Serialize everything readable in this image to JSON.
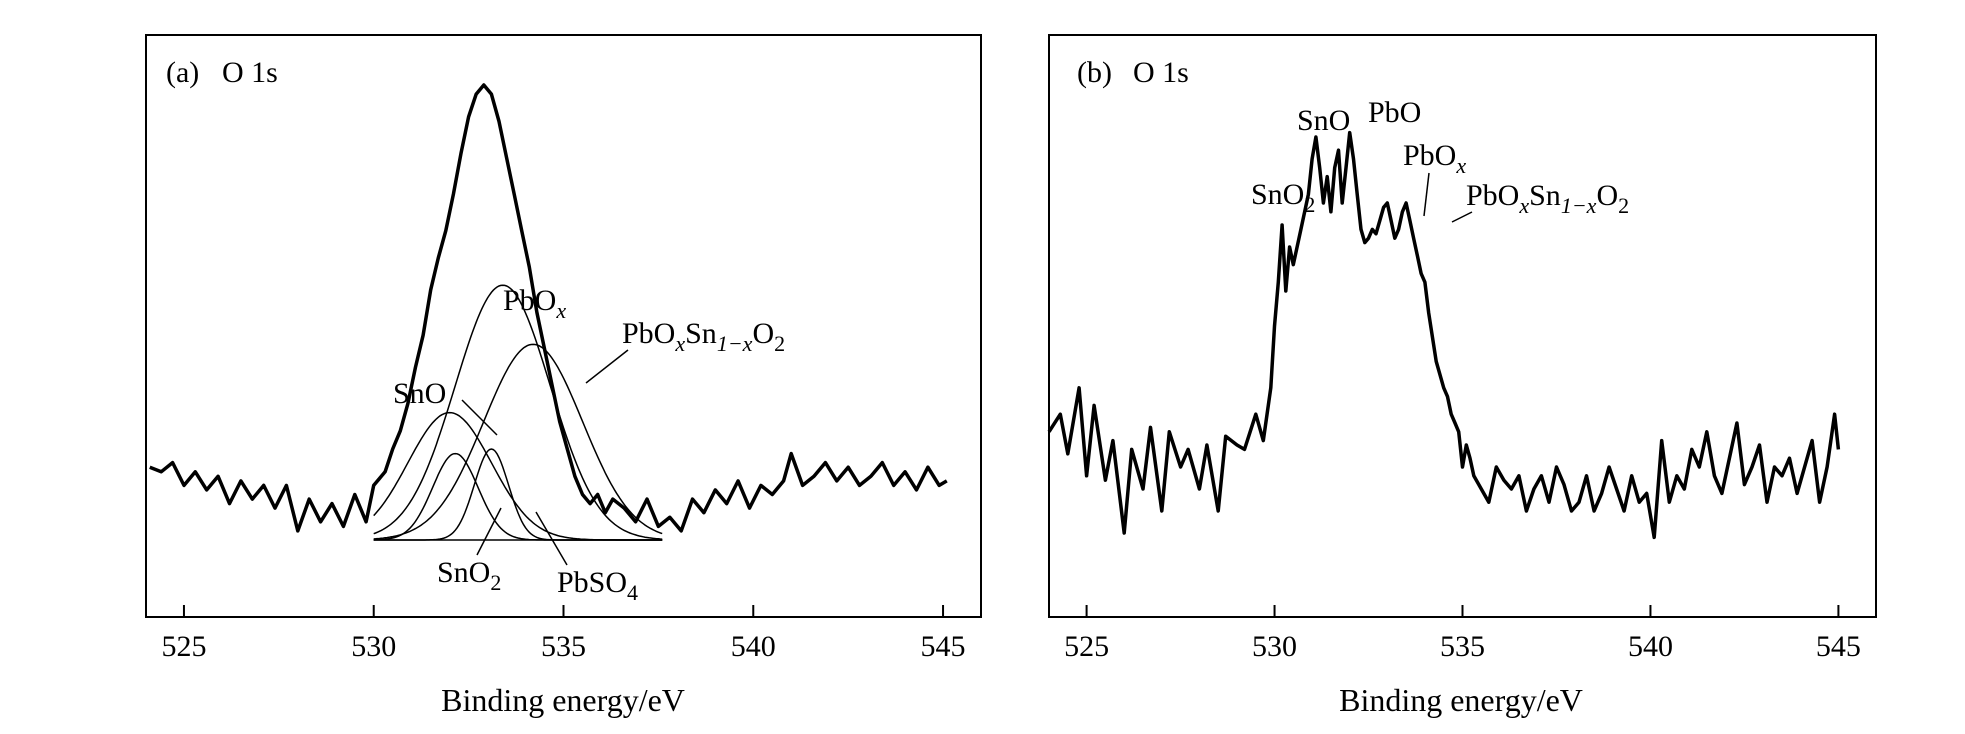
{
  "figure": {
    "background": "#ffffff",
    "ink": "#000000"
  },
  "chart_data": [
    {
      "type": "line",
      "panel_label": "(a)",
      "title": "O 1s",
      "xlabel": "Binding energy/eV",
      "ylabel": "",
      "xlim": [
        524.0,
        546.0
      ],
      "ylim": [
        0,
        1.0
      ],
      "xticks": [
        525,
        530,
        535,
        540,
        545
      ],
      "xtick_labels": [
        "525",
        "530",
        "535",
        "540",
        "545"
      ],
      "yaxis_visible": false,
      "series": [
        {
          "role": "envelope",
          "x": [
            524.1,
            524.4,
            524.7,
            525.0,
            525.3,
            525.6,
            525.9,
            526.2,
            526.5,
            526.8,
            527.1,
            527.4,
            527.7,
            528.0,
            528.3,
            528.6,
            528.9,
            529.2,
            529.5,
            529.8,
            530.0,
            530.3,
            530.5,
            530.7,
            530.9,
            531.1,
            531.3,
            531.5,
            531.7,
            531.9,
            532.1,
            532.3,
            532.5,
            532.7,
            532.9,
            533.1,
            533.3,
            533.5,
            533.7,
            533.9,
            534.1,
            534.3,
            534.5,
            534.7,
            534.9,
            535.1,
            535.3,
            535.5,
            535.7,
            535.9,
            536.1,
            536.3,
            536.6,
            536.9,
            537.2,
            537.5,
            537.8,
            538.1,
            538.4,
            538.7,
            539.0,
            539.3,
            539.6,
            539.9,
            540.2,
            540.5,
            540.8,
            541.0,
            541.3,
            541.6,
            541.9,
            542.2,
            542.5,
            542.8,
            543.1,
            543.4,
            543.7,
            544.0,
            544.3,
            544.6,
            544.9,
            545.1
          ],
          "values": [
            0.16,
            0.15,
            0.17,
            0.12,
            0.15,
            0.11,
            0.14,
            0.08,
            0.13,
            0.09,
            0.12,
            0.07,
            0.12,
            0.02,
            0.09,
            0.04,
            0.08,
            0.03,
            0.1,
            0.04,
            0.12,
            0.15,
            0.2,
            0.24,
            0.3,
            0.38,
            0.45,
            0.55,
            0.62,
            0.68,
            0.76,
            0.85,
            0.93,
            0.98,
            1.0,
            0.98,
            0.92,
            0.84,
            0.76,
            0.68,
            0.6,
            0.5,
            0.42,
            0.34,
            0.26,
            0.2,
            0.14,
            0.1,
            0.08,
            0.1,
            0.06,
            0.09,
            0.07,
            0.04,
            0.09,
            0.03,
            0.05,
            0.02,
            0.09,
            0.06,
            0.11,
            0.08,
            0.13,
            0.07,
            0.12,
            0.1,
            0.13,
            0.19,
            0.12,
            0.14,
            0.17,
            0.13,
            0.16,
            0.12,
            0.14,
            0.17,
            0.12,
            0.15,
            0.11,
            0.16,
            0.12,
            0.13
          ]
        },
        {
          "name": "SnO2",
          "role": "component",
          "center": 532.15,
          "height": 0.19,
          "sigma": 0.6
        },
        {
          "name": "SnO",
          "role": "component",
          "center": 532.0,
          "height": 0.28,
          "sigma": 1.1
        },
        {
          "name": "PbOx",
          "role": "component",
          "center": 533.4,
          "height": 0.56,
          "sigma": 1.25
        },
        {
          "name": "PbSO4",
          "role": "component",
          "center": 533.1,
          "height": 0.2,
          "sigma": 0.45
        },
        {
          "name": "PbOxSn1-xO2",
          "role": "component",
          "center": 534.2,
          "height": 0.43,
          "sigma": 1.3
        }
      ],
      "baseline": 0.0,
      "annotations": [
        {
          "key": "pbox",
          "base": "PbO",
          "sub": "x",
          "rest": "",
          "rest_sub": ""
        },
        {
          "key": "mixed",
          "base": "PbO",
          "sub": "x",
          "rest": "Sn",
          "rest_sub": "1−x",
          "tail": "O",
          "tail_sub": "2"
        },
        {
          "key": "sno",
          "base": "SnO",
          "sub": "",
          "rest": "",
          "rest_sub": ""
        },
        {
          "key": "sno2",
          "base": "SnO",
          "sub": "2",
          "rest": "",
          "rest_sub": ""
        },
        {
          "key": "pbso4",
          "base": "PbSO",
          "sub": "4",
          "rest": "",
          "rest_sub": ""
        }
      ]
    },
    {
      "type": "line",
      "panel_label": "(b)",
      "title": "O 1s",
      "xlabel": "Binding energy/eV",
      "ylabel": "",
      "xlim": [
        524.0,
        546.0
      ],
      "ylim": [
        0,
        1.0
      ],
      "xticks": [
        525,
        530,
        535,
        540,
        545
      ],
      "xtick_labels": [
        "525",
        "530",
        "535",
        "540",
        "545"
      ],
      "yaxis_visible": false,
      "series": [
        {
          "role": "spectrum",
          "x": [
            524.0,
            524.3,
            524.5,
            524.8,
            525.0,
            525.2,
            525.5,
            525.7,
            526.0,
            526.2,
            526.5,
            526.7,
            527.0,
            527.2,
            527.5,
            527.7,
            528.0,
            528.2,
            528.5,
            528.7,
            529.0,
            529.2,
            529.5,
            529.7,
            529.9,
            530.0,
            530.1,
            530.2,
            530.3,
            530.4,
            530.5,
            530.7,
            530.9,
            531.0,
            531.1,
            531.2,
            531.3,
            531.4,
            531.5,
            531.6,
            531.7,
            531.8,
            531.9,
            532.0,
            532.1,
            532.2,
            532.3,
            532.4,
            532.5,
            532.6,
            532.7,
            532.8,
            532.9,
            533.0,
            533.1,
            533.2,
            533.3,
            533.4,
            533.5,
            533.6,
            533.7,
            533.8,
            533.9,
            534.0,
            534.1,
            534.3,
            534.5,
            534.6,
            534.7,
            534.8,
            534.9,
            535.0,
            535.1,
            535.2,
            535.3,
            535.5,
            535.7,
            535.9,
            536.1,
            536.3,
            536.5,
            536.7,
            536.9,
            537.1,
            537.3,
            537.5,
            537.7,
            537.9,
            538.1,
            538.3,
            538.5,
            538.7,
            538.9,
            539.1,
            539.3,
            539.5,
            539.7,
            539.9,
            540.1,
            540.3,
            540.5,
            540.7,
            540.9,
            541.1,
            541.3,
            541.5,
            541.7,
            541.9,
            542.1,
            542.3,
            542.5,
            542.7,
            542.9,
            543.1,
            543.3,
            543.5,
            543.7,
            543.9,
            544.1,
            544.3,
            544.5,
            544.7,
            544.9,
            545.0
          ],
          "values": [
            0.28,
            0.32,
            0.23,
            0.38,
            0.18,
            0.34,
            0.17,
            0.26,
            0.05,
            0.24,
            0.15,
            0.29,
            0.1,
            0.28,
            0.2,
            0.24,
            0.15,
            0.25,
            0.1,
            0.27,
            0.25,
            0.24,
            0.32,
            0.26,
            0.38,
            0.52,
            0.62,
            0.75,
            0.6,
            0.7,
            0.66,
            0.74,
            0.82,
            0.9,
            0.95,
            0.88,
            0.8,
            0.86,
            0.78,
            0.88,
            0.92,
            0.8,
            0.88,
            0.96,
            0.9,
            0.82,
            0.74,
            0.71,
            0.72,
            0.74,
            0.73,
            0.76,
            0.79,
            0.8,
            0.76,
            0.72,
            0.74,
            0.78,
            0.8,
            0.76,
            0.72,
            0.68,
            0.64,
            0.62,
            0.55,
            0.44,
            0.38,
            0.36,
            0.32,
            0.3,
            0.28,
            0.2,
            0.25,
            0.22,
            0.18,
            0.15,
            0.12,
            0.2,
            0.17,
            0.15,
            0.18,
            0.1,
            0.15,
            0.18,
            0.12,
            0.2,
            0.16,
            0.1,
            0.12,
            0.18,
            0.1,
            0.14,
            0.2,
            0.15,
            0.1,
            0.18,
            0.12,
            0.14,
            0.04,
            0.26,
            0.12,
            0.18,
            0.15,
            0.24,
            0.2,
            0.28,
            0.18,
            0.14,
            0.22,
            0.3,
            0.16,
            0.2,
            0.25,
            0.12,
            0.2,
            0.18,
            0.22,
            0.14,
            0.2,
            0.26,
            0.12,
            0.2,
            0.32,
            0.24
          ]
        }
      ],
      "annotations": [
        {
          "key": "sno2",
          "base": "SnO",
          "sub": "2"
        },
        {
          "key": "sno",
          "base": "SnO",
          "sub": ""
        },
        {
          "key": "pbo",
          "base": "PbO",
          "sub": ""
        },
        {
          "key": "pbox",
          "base": "PbO",
          "sub": "x"
        },
        {
          "key": "mixed",
          "base": "PbO",
          "sub": "x",
          "rest": "Sn",
          "rest_sub": "1−x",
          "tail": "O",
          "tail_sub": "2"
        }
      ]
    }
  ]
}
